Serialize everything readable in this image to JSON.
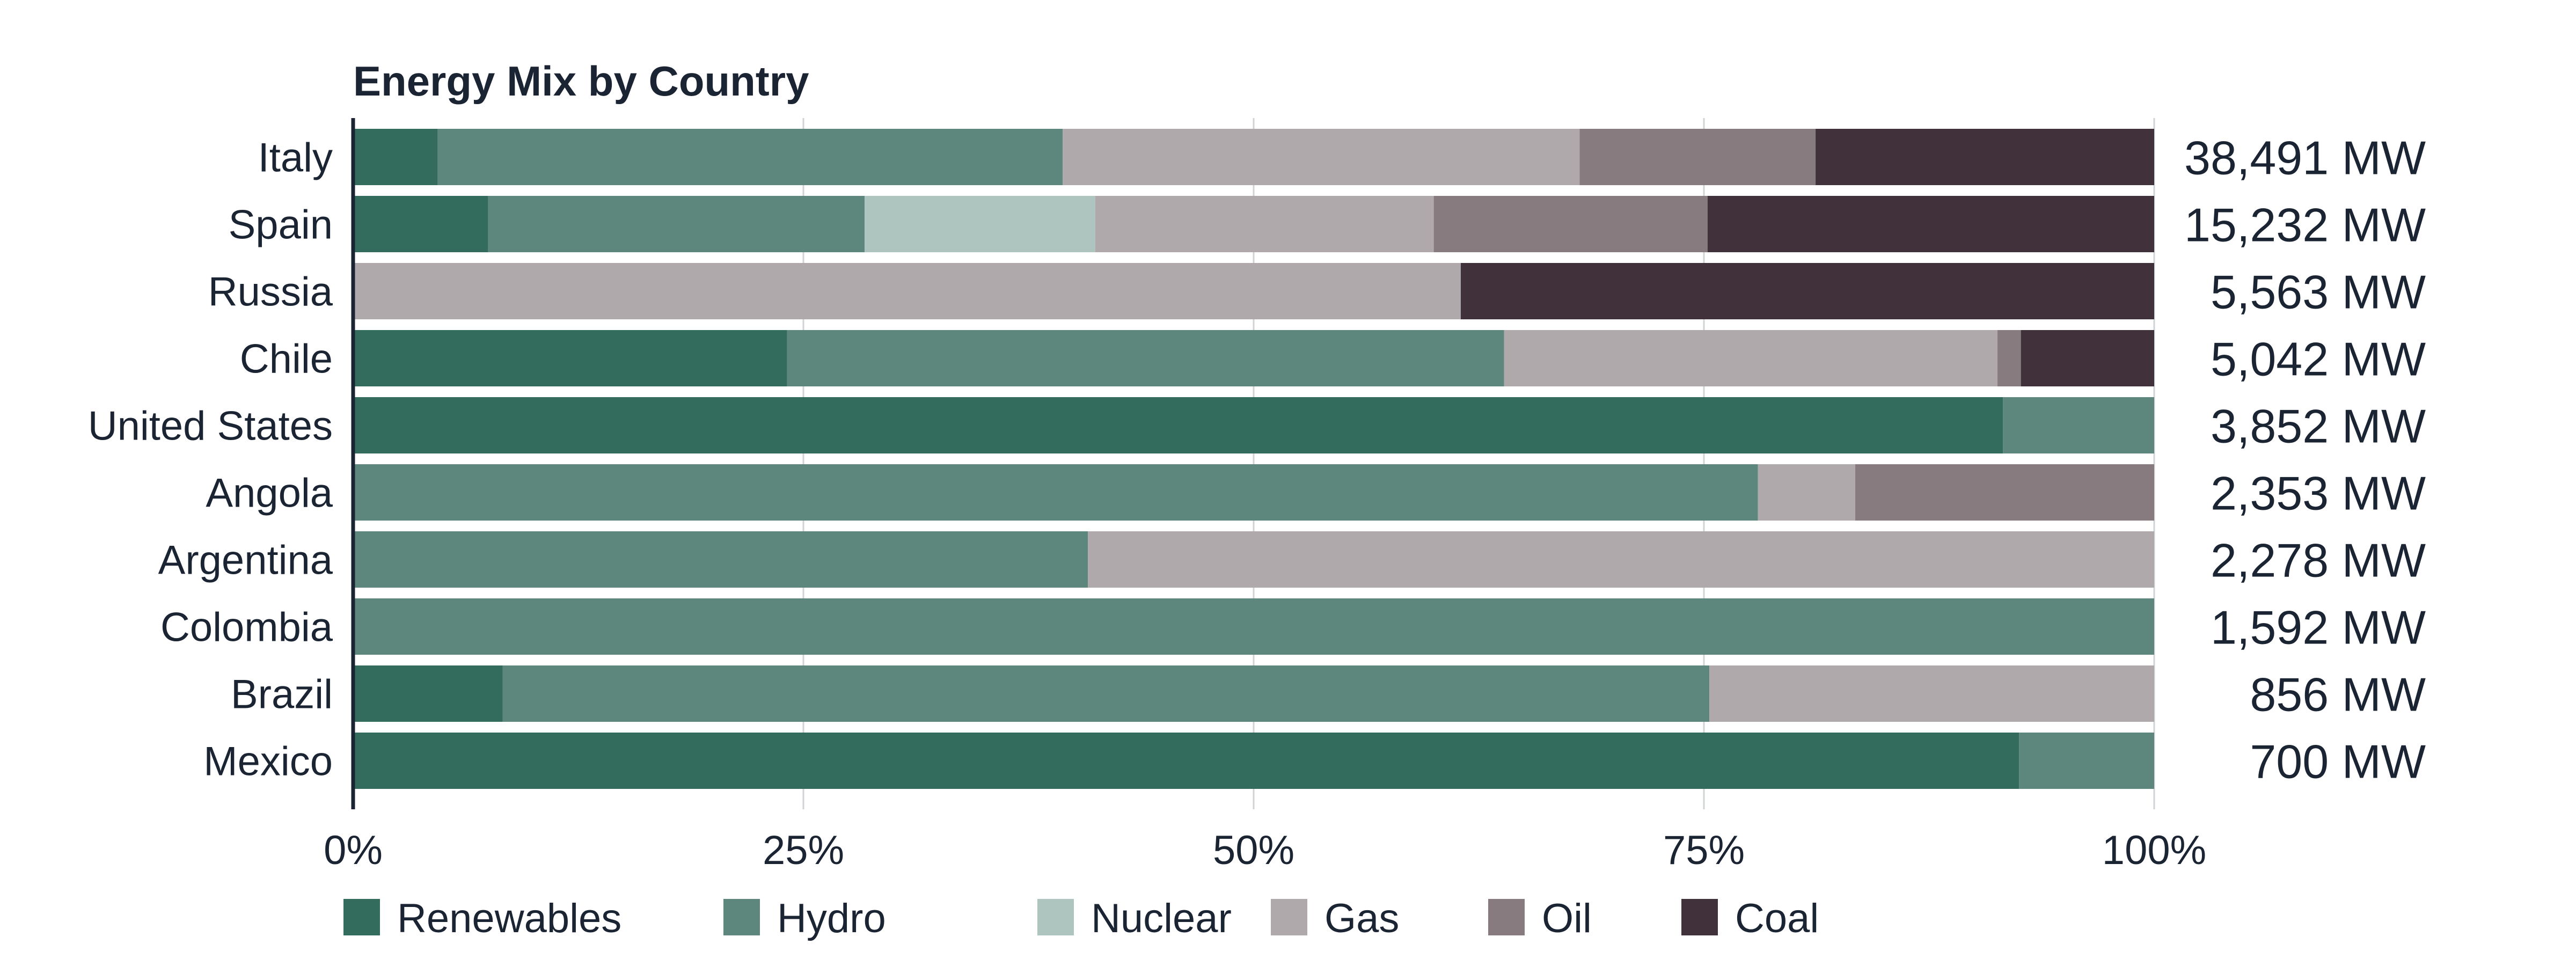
{
  "chart_data": {
    "type": "bar",
    "orientation": "horizontal",
    "stacked": "percent",
    "title": "Energy Mix by Country",
    "xlabel": "",
    "ylabel": "",
    "xlim": [
      0,
      100
    ],
    "x_ticks": [
      "0%",
      "25%",
      "50%",
      "75%",
      "100%"
    ],
    "grid": "vertical",
    "legend_position": "bottom",
    "categories": [
      "Italy",
      "Spain",
      "Russia",
      "Chile",
      "United States",
      "Angola",
      "Argentina",
      "Colombia",
      "Brazil",
      "Mexico"
    ],
    "totals": [
      "38,491 MW",
      "15,232 MW",
      "5,563 MW",
      "5,042 MW",
      "3,852 MW",
      "2,353 MW",
      "2,278 MW",
      "1,592 MW",
      "856 MW",
      "700 MW"
    ],
    "series": [
      {
        "name": "Renewables",
        "color": "#336b5c",
        "values": [
          4.7,
          7.5,
          0,
          24.1,
          91.6,
          0,
          0,
          0,
          8.3,
          92.5
        ]
      },
      {
        "name": "Hydro",
        "color": "#5d877c",
        "values": [
          34.7,
          20.9,
          0,
          39.8,
          8.4,
          78.0,
          40.8,
          100,
          67.0,
          7.5
        ]
      },
      {
        "name": "Nuclear",
        "color": "#aec4bf",
        "values": [
          0,
          12.8,
          0,
          0,
          0,
          0,
          0,
          0,
          0,
          0
        ]
      },
      {
        "name": "Gas",
        "color": "#b0a9ac",
        "values": [
          28.7,
          18.8,
          61.5,
          27.4,
          0,
          5.4,
          59.2,
          0,
          24.7,
          0
        ]
      },
      {
        "name": "Oil",
        "color": "#877b80",
        "values": [
          13.1,
          15.2,
          0,
          1.3,
          0,
          16.6,
          0,
          0,
          0,
          0
        ]
      },
      {
        "name": "Coal",
        "color": "#40313b",
        "values": [
          18.8,
          24.8,
          38.5,
          7.4,
          0,
          0,
          0,
          0,
          0,
          0
        ]
      }
    ]
  }
}
